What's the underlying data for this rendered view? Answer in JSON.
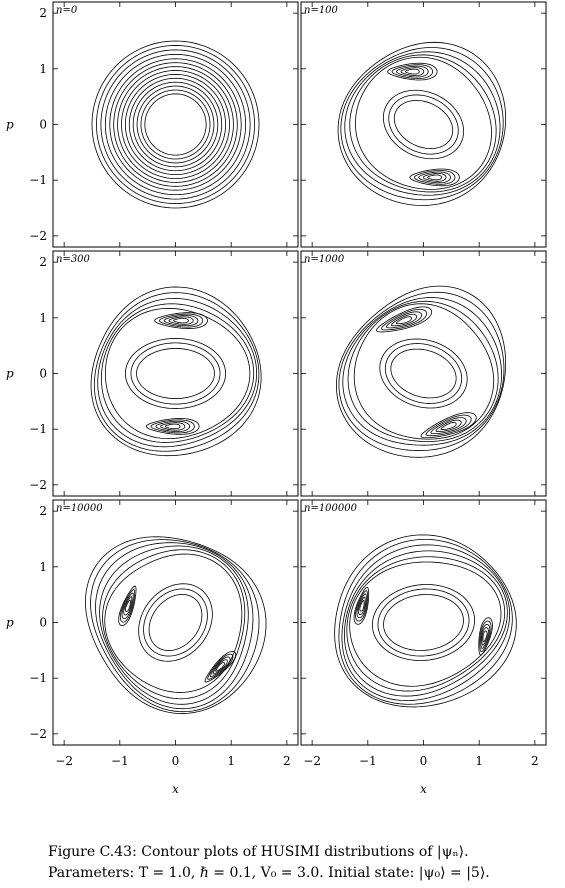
{
  "figure": {
    "caption_line1": "Figure C.43: Contour plots of HUSIMI distributions of |ψₙ⟩.",
    "caption_line2": "Parameters: T = 1.0, ℏ = 0.1, V₀ = 3.0. Initial state: |ψ₀⟩ = |5⟩."
  },
  "chart_data": {
    "type": "contour",
    "xlabel": "x",
    "ylabel": "p",
    "xlim": [
      -2.2,
      2.2
    ],
    "ylim": [
      -2.2,
      2.2
    ],
    "xticks": [
      -2,
      -1,
      0,
      1,
      2
    ],
    "yticks": [
      -2,
      -1,
      0,
      1,
      2
    ],
    "grid": false,
    "layout": "3 rows x 2 columns",
    "panels": [
      {
        "label": "n=0",
        "n": 0,
        "rings": [
          0.55,
          0.62,
          0.69,
          0.76,
          0.83,
          0.9,
          0.97,
          1.04,
          1.11,
          1.18,
          1.26,
          1.34,
          1.42,
          1.5
        ],
        "maxima": []
      },
      {
        "label": "n=100",
        "n": 100,
        "maxima": [
          [
            -0.2,
            0.95
          ],
          [
            0.2,
            -0.95
          ]
        ]
      },
      {
        "label": "n=300",
        "n": 300,
        "maxima": [
          [
            0.1,
            0.95
          ],
          [
            -0.05,
            -0.95
          ]
        ]
      },
      {
        "label": "n=1000",
        "n": 1000,
        "maxima": [
          [
            -0.35,
            0.95
          ],
          [
            0.45,
            -0.95
          ]
        ]
      },
      {
        "label": "n=10000",
        "n": 10000,
        "maxima": [
          [
            -0.85,
            0.3
          ],
          [
            0.8,
            -0.8
          ]
        ]
      },
      {
        "label": "n=100000",
        "n": 100000,
        "maxima": [
          [
            -1.1,
            0.3
          ],
          [
            1.1,
            -0.25
          ]
        ]
      }
    ]
  }
}
